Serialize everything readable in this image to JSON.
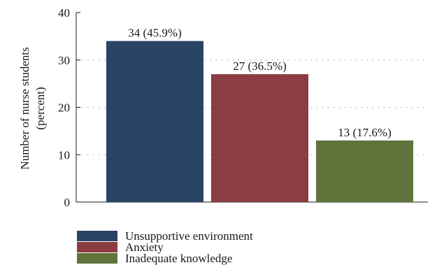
{
  "chart_data": {
    "type": "bar",
    "categories": [
      "Unsupportive environment",
      "Anxiety",
      "Inadequate knowledge"
    ],
    "values": [
      34,
      27,
      13
    ],
    "data_labels": [
      "34 (45.9%)",
      "27 (36.5%)",
      "13 (17.6%)"
    ],
    "ylabel_line1": "Number of nurse students",
    "ylabel_line2": "(percent)",
    "ylim": [
      0,
      40
    ],
    "yticks": [
      0,
      10,
      20,
      30,
      40
    ],
    "ytick_labels": [
      "0",
      "10",
      "20",
      "30",
      "40"
    ],
    "grid": true,
    "legend_placement": "bottom",
    "colors": [
      "#2a4466",
      "#8c3c43",
      "#5f733a"
    ]
  }
}
